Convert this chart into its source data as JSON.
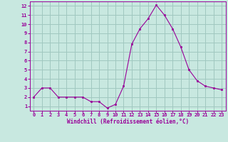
{
  "x": [
    0,
    1,
    2,
    3,
    4,
    5,
    6,
    7,
    8,
    9,
    10,
    11,
    12,
    13,
    14,
    15,
    16,
    17,
    18,
    19,
    20,
    21,
    22,
    23
  ],
  "y": [
    2,
    3,
    3,
    2,
    2,
    2,
    2,
    1.5,
    1.5,
    0.8,
    1.2,
    3.2,
    7.8,
    9.5,
    10.6,
    12.1,
    11.0,
    9.5,
    7.5,
    5.0,
    3.8,
    3.2,
    3.0,
    2.8
  ],
  "line_color": "#990099",
  "marker_color": "#990099",
  "bg_color": "#c8e8e0",
  "grid_color": "#a0c8c0",
  "xlabel": "Windchill (Refroidissement éolien,°C)",
  "xlabel_color": "#990099",
  "tick_color": "#990099",
  "ylim": [
    0.5,
    12.5
  ],
  "xlim": [
    -0.5,
    23.5
  ],
  "yticks": [
    1,
    2,
    3,
    4,
    5,
    6,
    7,
    8,
    9,
    10,
    11,
    12
  ],
  "xticks": [
    0,
    1,
    2,
    3,
    4,
    5,
    6,
    7,
    8,
    9,
    10,
    11,
    12,
    13,
    14,
    15,
    16,
    17,
    18,
    19,
    20,
    21,
    22,
    23
  ]
}
